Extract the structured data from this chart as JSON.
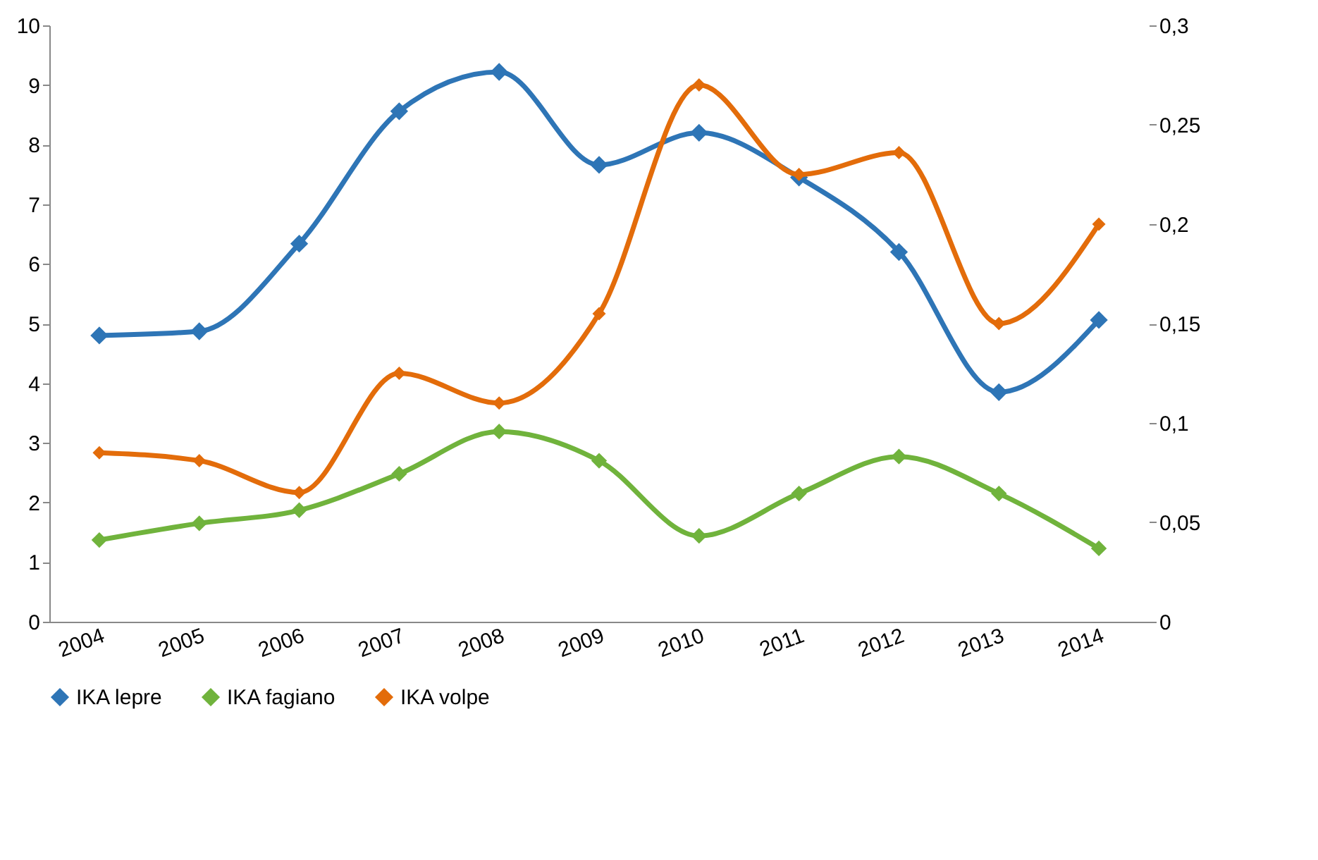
{
  "chart_data": {
    "type": "line",
    "categories": [
      "2004",
      "2005",
      "2006",
      "2007",
      "2008",
      "2009",
      "2010",
      "2011",
      "2012",
      "2013",
      "2014"
    ],
    "series": [
      {
        "name": "IKA lepre",
        "color": "#2e75b6",
        "values": [
          4.8,
          4.87,
          6.34,
          8.56,
          9.22,
          7.66,
          8.2,
          7.45,
          6.2,
          3.85,
          5.06
        ]
      },
      {
        "name": "IKA fagiano",
        "color": "#70b33c",
        "values": [
          1.37,
          1.65,
          1.87,
          2.48,
          3.19,
          2.7,
          1.44,
          2.15,
          2.77,
          2.15,
          1.23
        ]
      },
      {
        "name": "IKA volpe",
        "color": "#e36c0a",
        "axis": "y2",
        "values": [
          0.085,
          0.081,
          0.065,
          0.125,
          0.11,
          0.155,
          0.27,
          0.225,
          0.236,
          0.15,
          0.2
        ]
      }
    ],
    "ylim": [
      0,
      10
    ],
    "yticks": [
      0,
      1,
      2,
      3,
      4,
      5,
      6,
      7,
      8,
      9,
      10
    ],
    "y2lim": [
      0,
      0.3
    ],
    "y2ticks": [
      0,
      {
        "value": 0.05,
        "label": "0,05"
      },
      {
        "value": 0.1,
        "label": "0,1"
      },
      {
        "value": 0.15,
        "label": "0,15"
      },
      {
        "value": 0.2,
        "label": "0,2"
      },
      {
        "value": 0.25,
        "label": "0,25"
      },
      {
        "value": 0.3,
        "label": "0,3"
      }
    ],
    "grid": false,
    "legend": "bottom",
    "marker": "diamond",
    "line_style": "solid"
  }
}
